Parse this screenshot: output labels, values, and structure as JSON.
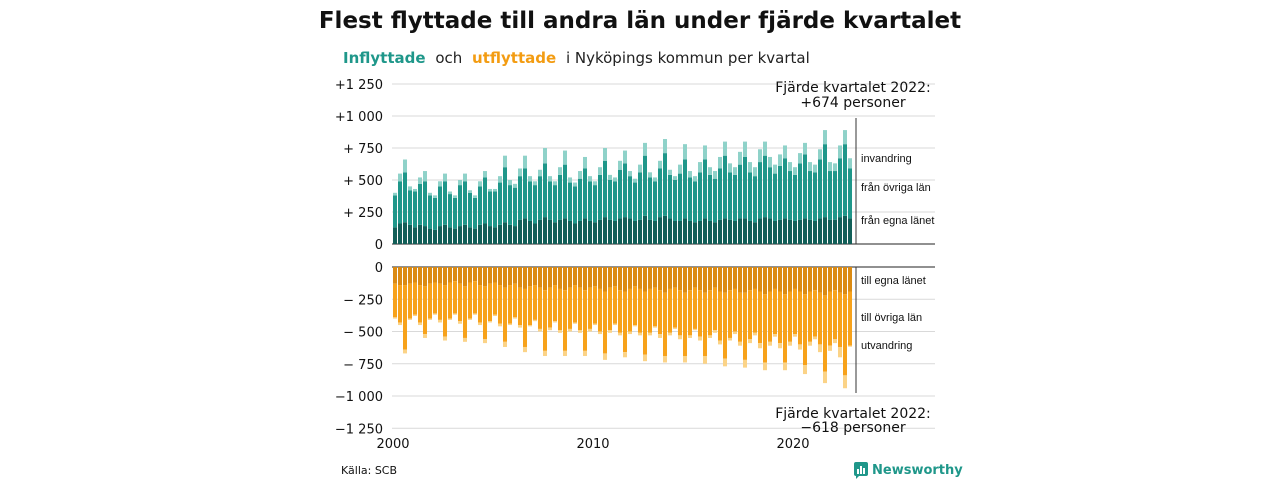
{
  "title": "Flest flyttade till andra län under fjärde kvartalet",
  "subtitle": {
    "in_word": "Inflyttade",
    "and_word": "och",
    "out_word": "utflyttade",
    "rest": "i Nyköpings kommun per kvartal"
  },
  "colors": {
    "in_county": "#125f58",
    "in_other": "#1f978a",
    "in_immigration": "#8fd2c9",
    "out_county": "#db8a12",
    "out_other": "#f7a21b",
    "out_emigration": "#fbd387",
    "subtitle_in": "#1f978a",
    "subtitle_out": "#f39c12",
    "logo": "#1f978a"
  },
  "chart_data": {
    "type": "bar",
    "stacked": true,
    "x_start": "2000-Q1",
    "x_end": "2022-Q4",
    "ylim_top": [
      0,
      1250
    ],
    "ylim_bottom": [
      -1250,
      0
    ],
    "yticks_top": [
      "+1 250",
      "+1 000",
      "+  750",
      "+  500",
      "+  250",
      "0"
    ],
    "yticks_bottom": [
      "0",
      "−  250",
      "−  500",
      "−  750",
      "−1 000",
      "−1 250"
    ],
    "xticks": [
      "2000",
      "2010",
      "2020"
    ],
    "series_in": [
      {
        "name": "från egna länet",
        "values": [
          130,
          160,
          170,
          150,
          130,
          150,
          140,
          120,
          110,
          140,
          150,
          130,
          120,
          140,
          150,
          130,
          120,
          150,
          160,
          140,
          130,
          150,
          170,
          150,
          140,
          190,
          200,
          180,
          160,
          190,
          210,
          190,
          170,
          190,
          200,
          180,
          160,
          180,
          200,
          180,
          170,
          190,
          210,
          190,
          180,
          200,
          210,
          200,
          180,
          190,
          220,
          190,
          180,
          210,
          220,
          200,
          180,
          180,
          200,
          180,
          170,
          180,
          200,
          180,
          170,
          190,
          200,
          190,
          180,
          200,
          200,
          180,
          170,
          200,
          210,
          200,
          180,
          190,
          200,
          190,
          180,
          190,
          200,
          190,
          180,
          200,
          210,
          190,
          190,
          210,
          220,
          200
        ]
      },
      {
        "name": "från övriga län",
        "values": [
          250,
          330,
          390,
          270,
          280,
          320,
          350,
          260,
          250,
          310,
          340,
          260,
          240,
          320,
          340,
          270,
          240,
          300,
          360,
          270,
          280,
          330,
          430,
          310,
          300,
          340,
          390,
          310,
          300,
          340,
          420,
          300,
          290,
          350,
          420,
          300,
          290,
          330,
          390,
          310,
          290,
          350,
          440,
          310,
          310,
          380,
          420,
          330,
          300,
          370,
          470,
          330,
          310,
          380,
          490,
          340,
          320,
          370,
          460,
          340,
          320,
          380,
          460,
          360,
          340,
          400,
          490,
          370,
          360,
          420,
          480,
          380,
          360,
          440,
          480,
          400,
          370,
          420,
          470,
          380,
          360,
          440,
          500,
          380,
          380,
          460,
          570,
          380,
          380,
          460,
          560,
          390
        ]
      },
      {
        "name": "invandring",
        "values": [
          20,
          60,
          100,
          30,
          20,
          50,
          80,
          20,
          20,
          40,
          60,
          20,
          20,
          40,
          60,
          20,
          20,
          40,
          50,
          20,
          20,
          50,
          90,
          40,
          30,
          60,
          100,
          40,
          30,
          50,
          120,
          40,
          30,
          60,
          110,
          40,
          30,
          60,
          90,
          40,
          30,
          60,
          100,
          40,
          30,
          70,
          100,
          40,
          30,
          60,
          100,
          40,
          30,
          60,
          110,
          40,
          30,
          70,
          120,
          50,
          40,
          80,
          110,
          60,
          60,
          90,
          110,
          70,
          60,
          100,
          120,
          80,
          70,
          100,
          110,
          80,
          70,
          90,
          100,
          70,
          60,
          80,
          90,
          70,
          60,
          80,
          110,
          70,
          60,
          100,
          110,
          80
        ]
      }
    ],
    "series_out": [
      {
        "name": "till egna länet",
        "values": [
          -130,
          -140,
          -140,
          -130,
          -120,
          -140,
          -150,
          -130,
          -120,
          -130,
          -140,
          -120,
          -110,
          -130,
          -150,
          -120,
          -110,
          -140,
          -150,
          -130,
          -120,
          -140,
          -160,
          -140,
          -130,
          -160,
          -170,
          -150,
          -140,
          -160,
          -180,
          -160,
          -140,
          -170,
          -180,
          -160,
          -140,
          -160,
          -180,
          -160,
          -150,
          -170,
          -190,
          -160,
          -150,
          -180,
          -190,
          -170,
          -150,
          -170,
          -190,
          -170,
          -160,
          -180,
          -200,
          -170,
          -160,
          -180,
          -200,
          -180,
          -160,
          -180,
          -200,
          -180,
          -160,
          -190,
          -200,
          -180,
          -170,
          -200,
          -200,
          -180,
          -170,
          -190,
          -210,
          -190,
          -170,
          -190,
          -210,
          -190,
          -170,
          -190,
          -210,
          -190,
          -180,
          -200,
          -220,
          -190,
          -180,
          -200,
          -210,
          -190
        ]
      },
      {
        "name": "till övriga län",
        "values": [
          -260,
          -290,
          -500,
          -270,
          -250,
          -290,
          -370,
          -270,
          -240,
          -280,
          -400,
          -280,
          -250,
          -290,
          -400,
          -280,
          -250,
          -290,
          -410,
          -290,
          -250,
          -300,
          -420,
          -300,
          -260,
          -290,
          -450,
          -300,
          -270,
          -320,
          -470,
          -310,
          -280,
          -320,
          -470,
          -320,
          -290,
          -330,
          -470,
          -320,
          -290,
          -330,
          -480,
          -330,
          -290,
          -330,
          -470,
          -330,
          -300,
          -340,
          -490,
          -340,
          -300,
          -340,
          -490,
          -340,
          -310,
          -350,
          -490,
          -350,
          -320,
          -360,
          -490,
          -350,
          -330,
          -380,
          -510,
          -370,
          -330,
          -380,
          -520,
          -380,
          -340,
          -400,
          -530,
          -390,
          -350,
          -400,
          -530,
          -390,
          -350,
          -410,
          -550,
          -390,
          -360,
          -400,
          -590,
          -420,
          -380,
          -420,
          -630,
          -420
        ]
      },
      {
        "name": "utvandring",
        "values": [
          -10,
          -20,
          -30,
          -10,
          -10,
          -20,
          -30,
          -10,
          -10,
          -20,
          -30,
          -10,
          -10,
          -20,
          -30,
          -10,
          -10,
          -20,
          -30,
          -10,
          -10,
          -20,
          -40,
          -10,
          -10,
          -20,
          -40,
          -10,
          -10,
          -20,
          -40,
          -20,
          -10,
          -20,
          -40,
          -20,
          -10,
          -20,
          -40,
          -20,
          -10,
          -20,
          -50,
          -20,
          -10,
          -20,
          -40,
          -20,
          -10,
          -20,
          -50,
          -20,
          -10,
          -30,
          -50,
          -20,
          -10,
          -30,
          -50,
          -20,
          -10,
          -30,
          -60,
          -20,
          -20,
          -30,
          -60,
          -20,
          -20,
          -30,
          -60,
          -30,
          -20,
          -40,
          -60,
          -30,
          -20,
          -40,
          -60,
          -30,
          -20,
          -40,
          -70,
          -30,
          -20,
          -60,
          -90,
          -40,
          -30,
          -80,
          -100,
          -8
        ]
      }
    ]
  },
  "annotations": {
    "top_line1": "Fjärde kvartalet 2022:",
    "top_line2": "+674 personer",
    "bottom_line1": "Fjärde kvartalet 2022:",
    "bottom_line2": "−618 personer"
  },
  "series_labels": {
    "in_immigration": "invandring",
    "in_other": "från övriga län",
    "in_county": "från egna länet",
    "out_county": "till egna länet",
    "out_other": "till övriga län",
    "out_emigration": "utvandring"
  },
  "source": "Källa: SCB",
  "logo_text": "Newsworthy",
  "logo_icon": "newsworthy-chart-icon"
}
